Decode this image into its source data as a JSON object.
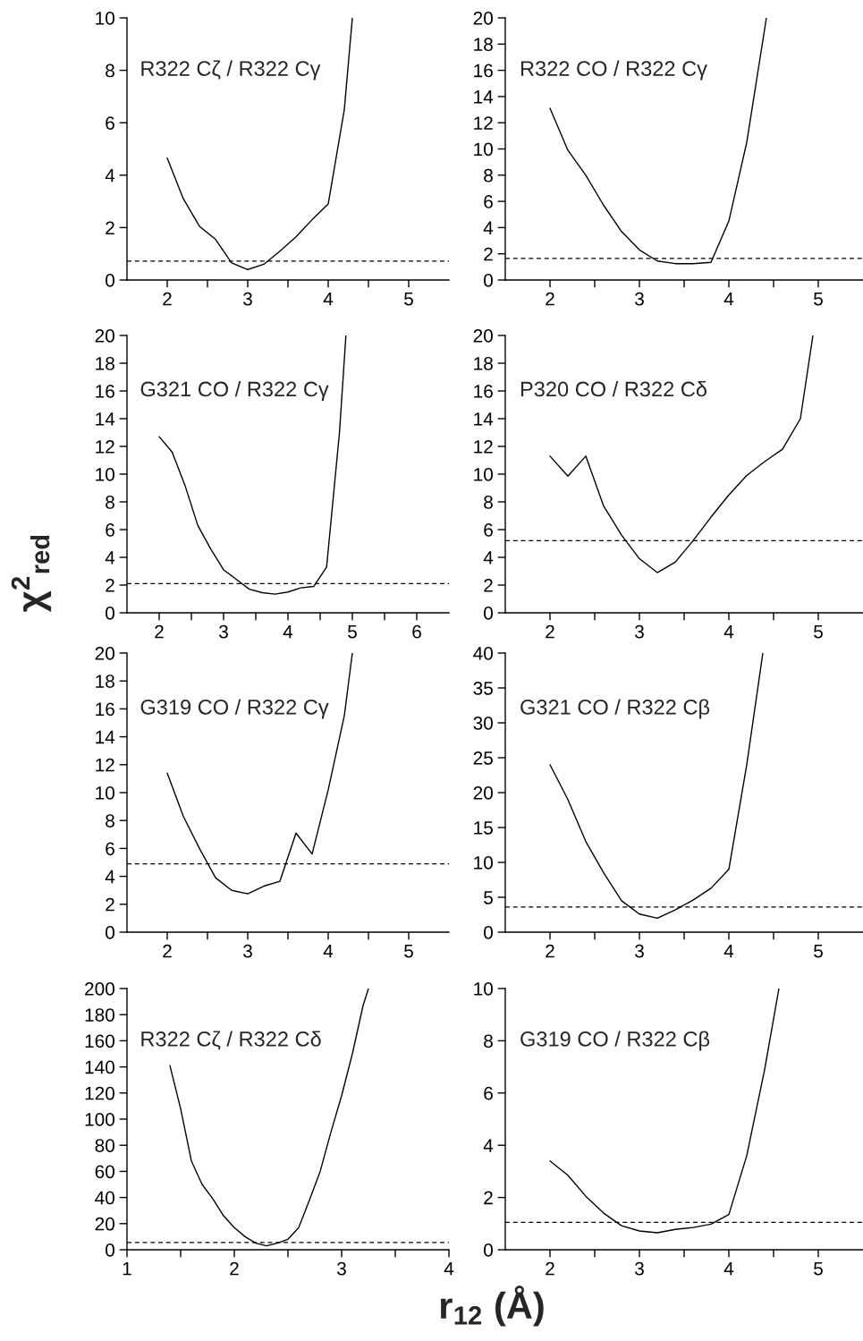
{
  "chart_data": [
    {
      "type": "line",
      "title": "R322 Cζ / R322 Cγ",
      "color": "#000000",
      "line_style": "solid",
      "marker": "none",
      "grid": false,
      "x": [
        2.0,
        2.2,
        2.4,
        2.6,
        2.8,
        3.0,
        3.2,
        3.4,
        3.6,
        3.8,
        4.0,
        4.2,
        4.3
      ],
      "values": [
        4.65,
        3.1,
        2.05,
        1.55,
        0.65,
        0.4,
        0.6,
        1.1,
        1.65,
        2.3,
        2.9,
        6.5,
        10.0
      ],
      "xlim": [
        1.5,
        5.5
      ],
      "xticks": [
        2,
        {
          "value": 2.5,
          "label": null
        },
        3,
        {
          "value": 3.5,
          "label": null
        },
        4,
        {
          "value": 4.5,
          "label": null
        },
        5
      ],
      "ylim": [
        0,
        10
      ],
      "yticks": [
        0,
        2,
        4,
        6,
        8,
        10
      ],
      "ref_lines": [
        {
          "axis": "y",
          "value": 0.72,
          "line_style": "dashed",
          "color": "#000000"
        }
      ]
    },
    {
      "type": "line",
      "title": "R322 CO / R322 Cγ",
      "color": "#000000",
      "line_style": "solid",
      "marker": "none",
      "grid": false,
      "x": [
        2.0,
        2.2,
        2.4,
        2.6,
        2.8,
        3.0,
        3.2,
        3.4,
        3.6,
        3.8,
        4.0,
        4.2,
        4.42
      ],
      "values": [
        13.1,
        9.9,
        8.0,
        5.7,
        3.7,
        2.3,
        1.45,
        1.25,
        1.25,
        1.35,
        4.5,
        10.5,
        20.0
      ],
      "xlim": [
        1.5,
        5.5
      ],
      "xticks": [
        2,
        {
          "value": 2.5,
          "label": null
        },
        3,
        {
          "value": 3.5,
          "label": null
        },
        4,
        {
          "value": 4.5,
          "label": null
        },
        5
      ],
      "ylim": [
        0,
        20
      ],
      "yticks": [
        0,
        2,
        4,
        6,
        8,
        10,
        12,
        14,
        16,
        18,
        20
      ],
      "ref_lines": [
        {
          "axis": "y",
          "value": 1.65,
          "line_style": "dashed",
          "color": "#000000"
        }
      ]
    },
    {
      "type": "line",
      "title": "G321 CO / R322 Cγ",
      "ylabel": "χ$^{2}$$_{red}$",
      "color": "#000000",
      "line_style": "solid",
      "marker": "none",
      "grid": false,
      "x": [
        2.0,
        2.2,
        2.4,
        2.6,
        2.8,
        3.0,
        3.2,
        3.4,
        3.6,
        3.8,
        4.0,
        4.2,
        4.4,
        4.6,
        4.8,
        4.9
      ],
      "values": [
        12.7,
        11.6,
        9.2,
        6.3,
        4.6,
        3.1,
        2.4,
        1.7,
        1.45,
        1.35,
        1.5,
        1.8,
        1.9,
        3.3,
        13.0,
        20.0
      ],
      "xlim": [
        1.5,
        6.5
      ],
      "xticks": [
        2,
        {
          "value": 2.5,
          "label": null
        },
        3,
        {
          "value": 3.5,
          "label": null
        },
        4,
        {
          "value": 4.5,
          "label": null
        },
        5,
        {
          "value": 5.5,
          "label": null
        },
        6
      ],
      "ylim": [
        0,
        20
      ],
      "yticks": [
        0,
        2,
        4,
        6,
        8,
        10,
        12,
        14,
        16,
        18,
        20
      ],
      "ref_lines": [
        {
          "axis": "y",
          "value": 2.1,
          "line_style": "dashed",
          "color": "#000000"
        }
      ]
    },
    {
      "type": "line",
      "title": "P320 CO / R322 Cδ",
      "color": "#000000",
      "line_style": "solid",
      "marker": "none",
      "grid": false,
      "x": [
        2.0,
        2.2,
        2.4,
        2.6,
        2.8,
        3.0,
        3.2,
        3.4,
        3.6,
        3.8,
        4.0,
        4.2,
        4.4,
        4.6,
        4.8,
        4.94
      ],
      "values": [
        11.3,
        9.85,
        11.3,
        7.7,
        5.6,
        3.9,
        2.9,
        3.65,
        5.2,
        6.9,
        8.5,
        9.9,
        10.9,
        11.8,
        14.0,
        20.0
      ],
      "xlim": [
        1.5,
        5.5
      ],
      "xticks": [
        2,
        {
          "value": 2.5,
          "label": null
        },
        3,
        {
          "value": 3.5,
          "label": null
        },
        4,
        {
          "value": 4.5,
          "label": null
        },
        5
      ],
      "ylim": [
        0,
        20
      ],
      "yticks": [
        0,
        2,
        4,
        6,
        8,
        10,
        12,
        14,
        16,
        18,
        20
      ],
      "ref_lines": [
        {
          "axis": "y",
          "value": 5.2,
          "line_style": "dashed",
          "color": "#000000"
        }
      ]
    },
    {
      "type": "line",
      "title": "G319 CO / R322 Cγ",
      "color": "#000000",
      "line_style": "solid",
      "marker": "none",
      "grid": false,
      "x": [
        2.0,
        2.2,
        2.4,
        2.6,
        2.8,
        3.0,
        3.2,
        3.4,
        3.6,
        3.8,
        4.0,
        4.2,
        4.3
      ],
      "values": [
        11.4,
        8.3,
        6.0,
        3.9,
        3.0,
        2.75,
        3.3,
        3.65,
        7.1,
        5.6,
        10.2,
        15.5,
        20.0
      ],
      "xlim": [
        1.5,
        5.5
      ],
      "xticks": [
        2,
        {
          "value": 2.5,
          "label": null
        },
        3,
        {
          "value": 3.5,
          "label": null
        },
        4,
        {
          "value": 4.5,
          "label": null
        },
        5
      ],
      "ylim": [
        0,
        20
      ],
      "yticks": [
        0,
        2,
        4,
        6,
        8,
        10,
        12,
        14,
        16,
        18,
        20
      ],
      "ref_lines": [
        {
          "axis": "y",
          "value": 4.9,
          "line_style": "dashed",
          "color": "#000000"
        }
      ]
    },
    {
      "type": "line",
      "title": "G321 CO / R322 Cβ",
      "color": "#000000",
      "line_style": "solid",
      "marker": "none",
      "grid": false,
      "x": [
        2.0,
        2.2,
        2.4,
        2.6,
        2.8,
        3.0,
        3.2,
        3.4,
        3.6,
        3.8,
        4.0,
        4.2,
        4.38
      ],
      "values": [
        24,
        19,
        13,
        8.5,
        4.5,
        2.6,
        2.0,
        3.2,
        4.6,
        6.3,
        9.0,
        24,
        40
      ],
      "xlim": [
        1.5,
        5.5
      ],
      "xticks": [
        2,
        {
          "value": 2.5,
          "label": null
        },
        3,
        {
          "value": 3.5,
          "label": null
        },
        4,
        {
          "value": 4.5,
          "label": null
        },
        5
      ],
      "ylim": [
        0,
        40
      ],
      "yticks": [
        0,
        5,
        10,
        15,
        20,
        25,
        30,
        35,
        40
      ],
      "ref_lines": [
        {
          "axis": "y",
          "value": 3.6,
          "line_style": "dashed",
          "color": "#000000"
        }
      ]
    },
    {
      "type": "line",
      "title": "R322 Cζ / R322 Cδ",
      "color": "#000000",
      "line_style": "solid",
      "marker": "none",
      "grid": false,
      "x": [
        1.4,
        1.5,
        1.6,
        1.7,
        1.8,
        1.9,
        2.0,
        2.1,
        2.2,
        2.3,
        2.4,
        2.5,
        2.6,
        2.7,
        2.8,
        2.9,
        3.0,
        3.1,
        3.2,
        3.25
      ],
      "values": [
        141,
        108,
        68,
        50,
        39,
        26,
        17,
        10,
        5,
        3,
        5,
        8,
        17,
        38,
        60,
        90,
        118,
        150,
        187,
        200
      ],
      "xlim": [
        1,
        4
      ],
      "xticks": [
        1,
        {
          "value": 1.5,
          "label": null
        },
        2,
        {
          "value": 2.5,
          "label": null
        },
        3,
        {
          "value": 3.5,
          "label": null
        },
        4
      ],
      "ylim": [
        0,
        200
      ],
      "yticks": [
        0,
        20,
        40,
        60,
        80,
        100,
        120,
        140,
        160,
        180,
        200
      ],
      "ref_lines": [
        {
          "axis": "y",
          "value": 5.5,
          "line_style": "dashed",
          "color": "#000000"
        }
      ]
    },
    {
      "type": "line",
      "title": "G319 CO / R322 Cβ",
      "xlabel": "r$_{12}$ (Å)",
      "color": "#000000",
      "line_style": "solid",
      "marker": "none",
      "grid": false,
      "x": [
        2.0,
        2.2,
        2.4,
        2.6,
        2.8,
        3.0,
        3.2,
        3.4,
        3.6,
        3.8,
        4.0,
        4.2,
        4.4,
        4.56
      ],
      "values": [
        3.4,
        2.85,
        2.05,
        1.4,
        0.92,
        0.72,
        0.65,
        0.78,
        0.85,
        0.98,
        1.35,
        3.6,
        6.9,
        10.0
      ],
      "xlim": [
        1.5,
        5.5
      ],
      "xticks": [
        2,
        {
          "value": 2.5,
          "label": null
        },
        3,
        {
          "value": 3.5,
          "label": null
        },
        4,
        {
          "value": 4.5,
          "label": null
        },
        5
      ],
      "ylim": [
        0,
        10
      ],
      "yticks": [
        0,
        2,
        4,
        6,
        8,
        10
      ],
      "ref_lines": [
        {
          "axis": "y",
          "value": 1.05,
          "line_style": "dashed",
          "color": "#000000"
        }
      ]
    }
  ]
}
